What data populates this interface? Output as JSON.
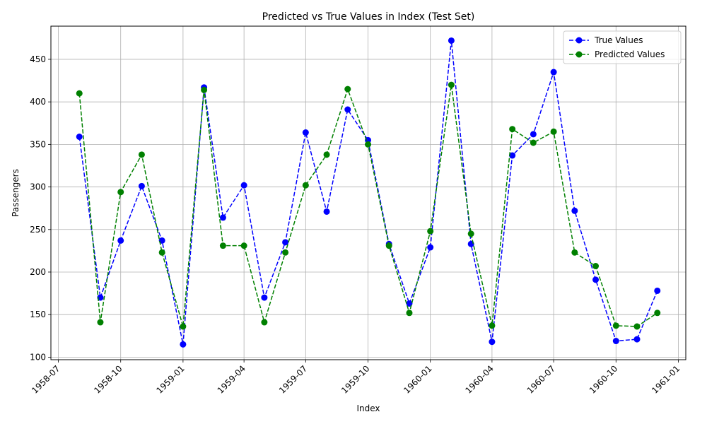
{
  "chart_data": {
    "type": "line",
    "title": "Predicted vs True Values in Index (Test Set)",
    "xlabel": "Index",
    "ylabel": "Passengers",
    "xlim": [
      "1958-06-20",
      "1961-01-12"
    ],
    "ylim": [
      97,
      489
    ],
    "grid": true,
    "legend_position": "top-right",
    "x_ticks": [
      {
        "value": "1958-07-01",
        "label": "1958-07"
      },
      {
        "value": "1958-10-01",
        "label": "1958-10"
      },
      {
        "value": "1959-01-01",
        "label": "1959-01"
      },
      {
        "value": "1959-04-01",
        "label": "1959-04"
      },
      {
        "value": "1959-07-01",
        "label": "1959-07"
      },
      {
        "value": "1959-10-01",
        "label": "1959-10"
      },
      {
        "value": "1960-01-01",
        "label": "1960-01"
      },
      {
        "value": "1960-04-01",
        "label": "1960-04"
      },
      {
        "value": "1960-07-01",
        "label": "1960-07"
      },
      {
        "value": "1960-10-01",
        "label": "1960-10"
      },
      {
        "value": "1961-01-01",
        "label": "1961-01"
      }
    ],
    "y_ticks": [
      100,
      150,
      200,
      250,
      300,
      350,
      400,
      450
    ],
    "x": [
      "1958-08-01",
      "1958-09-01",
      "1958-10-01",
      "1958-11-01",
      "1958-12-01",
      "1959-01-01",
      "1959-02-01",
      "1959-03-01",
      "1959-04-01",
      "1959-05-01",
      "1959-06-01",
      "1959-07-01",
      "1959-08-01",
      "1959-09-01",
      "1959-10-01",
      "1959-11-01",
      "1959-12-01",
      "1960-01-01",
      "1960-02-01",
      "1960-03-01",
      "1960-04-01",
      "1960-05-01",
      "1960-06-01",
      "1960-07-01",
      "1960-08-01",
      "1960-09-01",
      "1960-10-01",
      "1960-11-01",
      "1960-12-01"
    ],
    "series": [
      {
        "name": "True Values",
        "color": "#0000ff",
        "values": [
          359,
          170,
          237,
          301,
          237,
          115,
          417,
          264,
          302,
          170,
          235,
          364,
          271,
          391,
          355,
          233,
          163,
          229,
          472,
          233,
          118,
          337,
          362,
          435,
          272,
          191,
          119,
          121,
          178
        ]
      },
      {
        "name": "Predicted Values",
        "color": "#008000",
        "values": [
          410,
          141,
          294,
          338,
          223,
          136,
          414,
          231,
          231,
          141,
          223,
          302,
          338,
          415,
          350,
          231,
          152,
          248,
          420,
          245,
          137,
          368,
          352,
          365,
          223,
          207,
          137,
          136,
          152
        ]
      }
    ]
  }
}
